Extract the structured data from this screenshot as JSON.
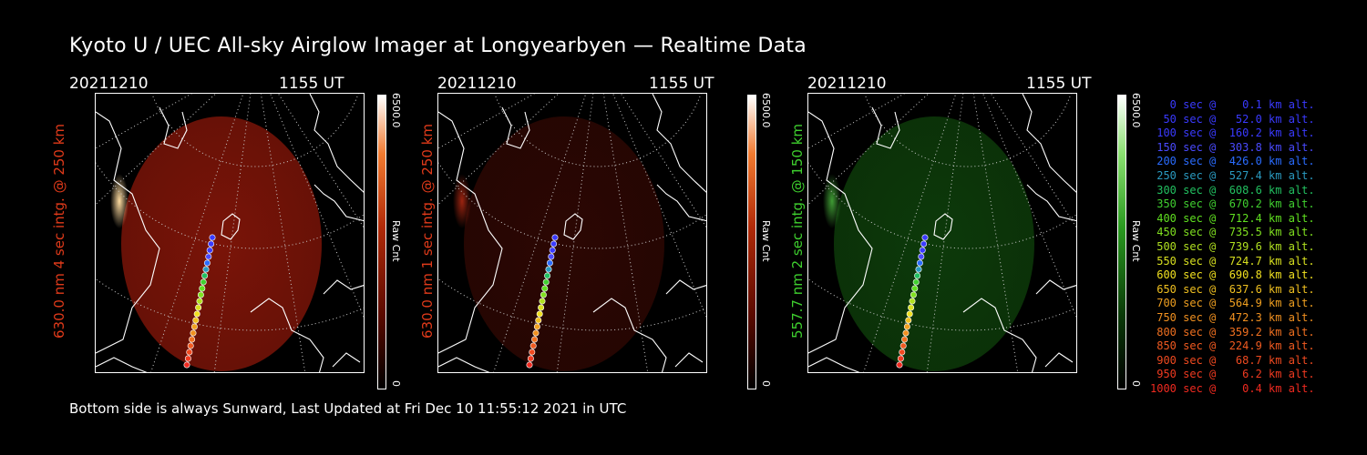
{
  "title": "Kyoto U / UEC All-sky Airglow Imager at Longyearbyen — Realtime Data",
  "footer": "Bottom side is always Sunward, Last Updated at Fri Dec 10 11:55:12 2021 in UTC",
  "panels": [
    {
      "date": "20211210",
      "time": "1155 UT",
      "ylabel": "630.0 nm 4 sec intg. @ 250 km",
      "color": "#e03a1a",
      "cbar_max": "6500.0",
      "cbar_min": "0",
      "cbar_label": "Raw Cnt",
      "fill": "#7a1408",
      "glow": "#ffdca0"
    },
    {
      "date": "20211210",
      "time": "1155 UT",
      "ylabel": "630.0 nm 1 sec intg. @ 250 km",
      "color": "#e03a1a",
      "cbar_max": "6500.0",
      "cbar_min": "0",
      "cbar_label": "Raw Cnt",
      "fill": "#2c0703",
      "glow": "#9c2410"
    },
    {
      "date": "20211210",
      "time": "1155 UT",
      "ylabel": "557.7 nm 2 sec intg. @ 150 km",
      "color": "#3ecf2e",
      "cbar_max": "6500.0",
      "cbar_min": "0",
      "cbar_label": "Raw Cnt",
      "fill": "#0d3a0a",
      "glow": "#3f9c34"
    }
  ],
  "legend": [
    {
      "text": "   0 sec @    0.1 km alt.",
      "color": "#3a3aff"
    },
    {
      "text": "  50 sec @   52.0 km alt.",
      "color": "#3a3aff"
    },
    {
      "text": " 100 sec @  160.2 km alt.",
      "color": "#3a3aff"
    },
    {
      "text": " 150 sec @  303.8 km alt.",
      "color": "#4a4aff"
    },
    {
      "text": " 200 sec @  426.0 km alt.",
      "color": "#2a6cff"
    },
    {
      "text": " 250 sec @  527.4 km alt.",
      "color": "#2a9ac0"
    },
    {
      "text": " 300 sec @  608.6 km alt.",
      "color": "#22c060"
    },
    {
      "text": " 350 sec @  670.2 km alt.",
      "color": "#40d030"
    },
    {
      "text": " 400 sec @  712.4 km alt.",
      "color": "#60e020"
    },
    {
      "text": " 450 sec @  735.5 km alt.",
      "color": "#80e020"
    },
    {
      "text": " 500 sec @  739.6 km alt.",
      "color": "#b0e020"
    },
    {
      "text": " 550 sec @  724.7 km alt.",
      "color": "#d8e020"
    },
    {
      "text": " 600 sec @  690.8 km alt.",
      "color": "#f0e020"
    },
    {
      "text": " 650 sec @  637.6 km alt.",
      "color": "#f0c020"
    },
    {
      "text": " 700 sec @  564.9 km alt.",
      "color": "#f0a020"
    },
    {
      "text": " 750 sec @  472.3 km alt.",
      "color": "#f09020"
    },
    {
      "text": " 800 sec @  359.2 km alt.",
      "color": "#f07020"
    },
    {
      "text": " 850 sec @  224.9 km alt.",
      "color": "#f05a20"
    },
    {
      "text": " 900 sec @   68.7 km alt.",
      "color": "#f04a20"
    },
    {
      "text": " 950 sec @    6.2 km alt.",
      "color": "#f03a20"
    },
    {
      "text": "1000 sec @    0.4 km alt.",
      "color": "#f02a20"
    }
  ]
}
